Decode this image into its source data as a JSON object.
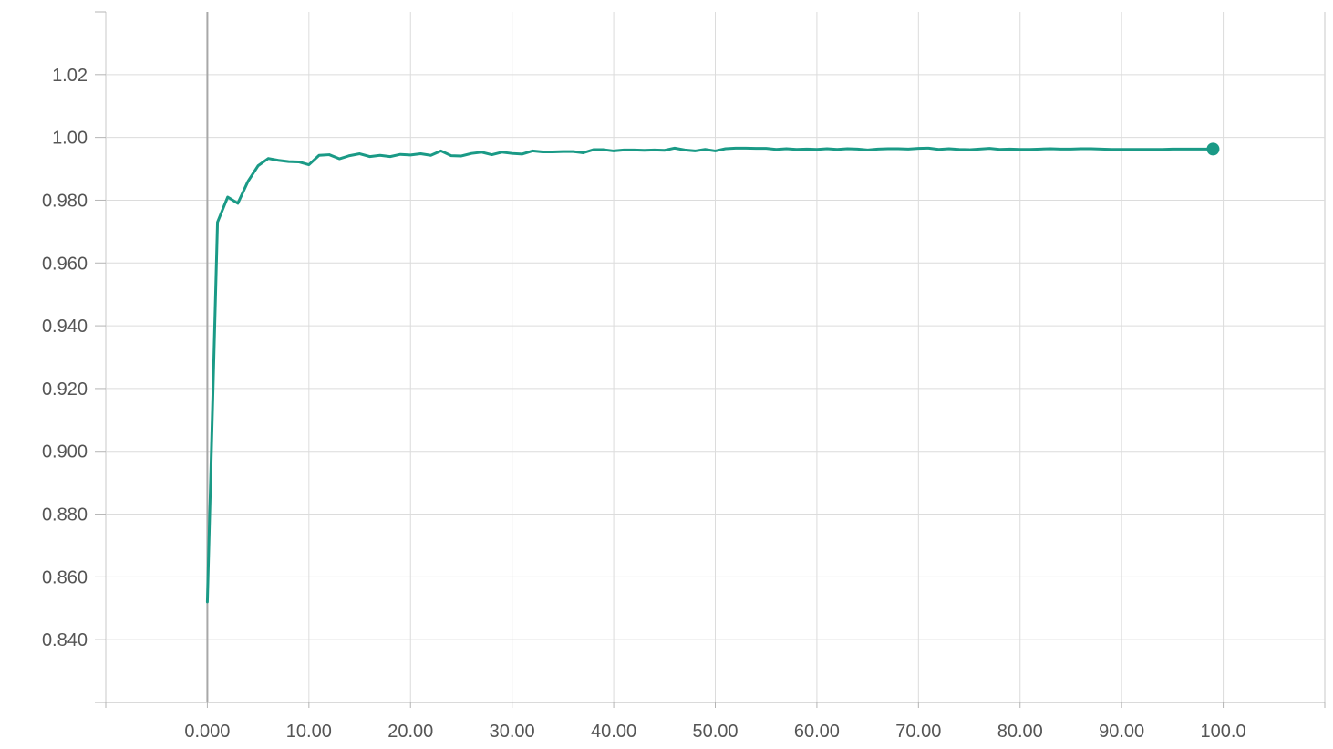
{
  "chart_data": {
    "type": "line",
    "title": "",
    "xlabel": "",
    "ylabel": "",
    "xlim": [
      -10,
      110
    ],
    "ylim": [
      0.82,
      1.04
    ],
    "grid": true,
    "legend": "none",
    "x_ticks": [
      {
        "value": 0,
        "label": "0.000"
      },
      {
        "value": 10,
        "label": "10.00"
      },
      {
        "value": 20,
        "label": "20.00"
      },
      {
        "value": 30,
        "label": "30.00"
      },
      {
        "value": 40,
        "label": "40.00"
      },
      {
        "value": 50,
        "label": "50.00"
      },
      {
        "value": 60,
        "label": "60.00"
      },
      {
        "value": 70,
        "label": "70.00"
      },
      {
        "value": 80,
        "label": "80.00"
      },
      {
        "value": 90,
        "label": "90.00"
      },
      {
        "value": 100,
        "label": "100.0"
      }
    ],
    "y_ticks": [
      {
        "value": 0.84,
        "label": "0.840"
      },
      {
        "value": 0.86,
        "label": "0.860"
      },
      {
        "value": 0.88,
        "label": "0.880"
      },
      {
        "value": 0.9,
        "label": "0.900"
      },
      {
        "value": 0.92,
        "label": "0.920"
      },
      {
        "value": 0.94,
        "label": "0.940"
      },
      {
        "value": 0.96,
        "label": "0.960"
      },
      {
        "value": 0.98,
        "label": "0.980"
      },
      {
        "value": 1.0,
        "label": "1.00"
      },
      {
        "value": 1.02,
        "label": "1.02"
      }
    ],
    "series": [
      {
        "color": "#1a9a86",
        "x": [
          0,
          1,
          2,
          3,
          4,
          5,
          6,
          7,
          8,
          9,
          10,
          11,
          12,
          13,
          14,
          15,
          16,
          17,
          18,
          19,
          20,
          21,
          22,
          23,
          24,
          25,
          26,
          27,
          28,
          29,
          30,
          31,
          32,
          33,
          34,
          35,
          36,
          37,
          38,
          39,
          40,
          41,
          42,
          43,
          44,
          45,
          46,
          47,
          48,
          49,
          50,
          51,
          52,
          53,
          54,
          55,
          56,
          57,
          58,
          59,
          60,
          61,
          62,
          63,
          64,
          65,
          66,
          67,
          68,
          69,
          70,
          71,
          72,
          73,
          74,
          75,
          76,
          77,
          78,
          79,
          80,
          81,
          82,
          83,
          84,
          85,
          86,
          87,
          88,
          89,
          90,
          91,
          92,
          93,
          94,
          95,
          96,
          97,
          98,
          99
        ],
        "y": [
          0.852,
          0.973,
          0.981,
          0.979,
          0.986,
          0.991,
          0.9933,
          0.9927,
          0.9923,
          0.9922,
          0.9913,
          0.9943,
          0.9945,
          0.9932,
          0.9942,
          0.9948,
          0.9939,
          0.9943,
          0.9939,
          0.9946,
          0.9944,
          0.9948,
          0.9943,
          0.9957,
          0.9942,
          0.9941,
          0.9949,
          0.9953,
          0.9945,
          0.9953,
          0.9949,
          0.9947,
          0.9957,
          0.9954,
          0.9954,
          0.9955,
          0.9955,
          0.9951,
          0.9961,
          0.9961,
          0.9957,
          0.996,
          0.996,
          0.9959,
          0.996,
          0.9959,
          0.9966,
          0.996,
          0.9957,
          0.9962,
          0.9957,
          0.9964,
          0.9966,
          0.9966,
          0.9965,
          0.9965,
          0.9962,
          0.9964,
          0.9962,
          0.9963,
          0.9962,
          0.9964,
          0.9962,
          0.9964,
          0.9963,
          0.996,
          0.9963,
          0.9964,
          0.9964,
          0.9963,
          0.9965,
          0.9966,
          0.9962,
          0.9964,
          0.9962,
          0.9961,
          0.9963,
          0.9965,
          0.9962,
          0.9963,
          0.9962,
          0.9962,
          0.9963,
          0.9964,
          0.9963,
          0.9963,
          0.9964,
          0.9964,
          0.9963,
          0.9962,
          0.9962,
          0.9962,
          0.9962,
          0.9962,
          0.9962,
          0.9963,
          0.9963,
          0.9963,
          0.9963,
          0.9963
        ]
      }
    ]
  }
}
